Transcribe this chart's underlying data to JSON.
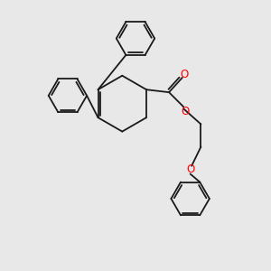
{
  "bg_color": "#e8e8e8",
  "bond_color": "#1a1a1a",
  "o_color": "#ff0000",
  "line_width": 1.3,
  "fig_size": [
    3.0,
    3.0
  ],
  "dpi": 100,
  "xlim": [
    0,
    10
  ],
  "ylim": [
    0,
    10
  ]
}
